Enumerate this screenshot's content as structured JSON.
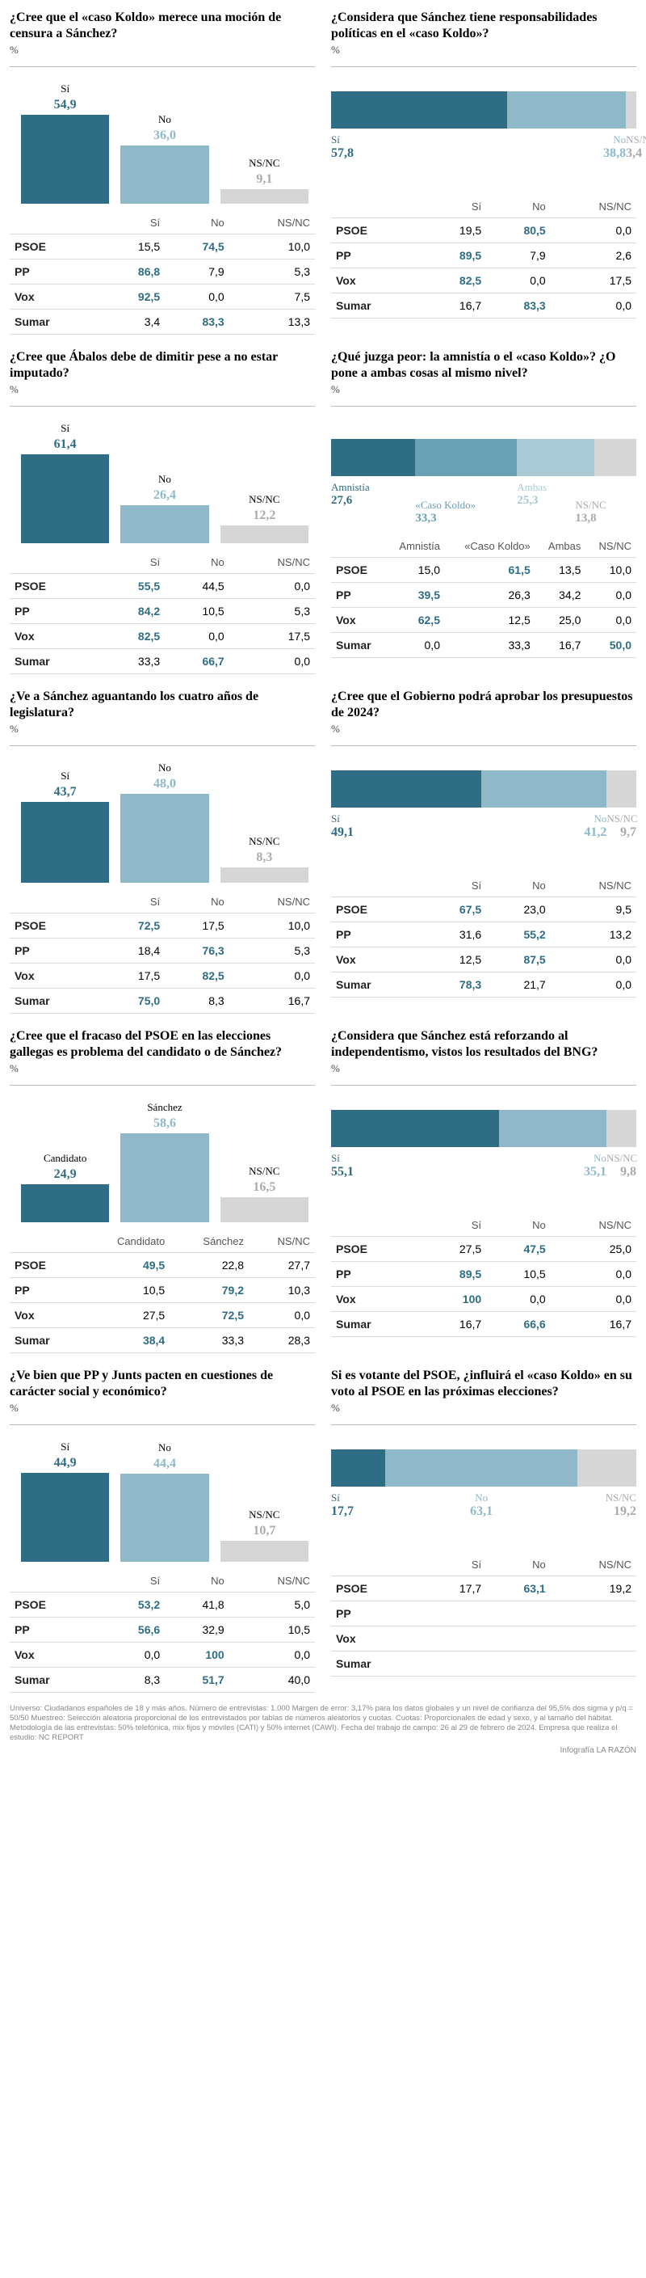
{
  "colors": {
    "dark": "#2f6d84",
    "mid": "#8fb9c8",
    "light": "#d6d6d6",
    "hl": "#2f6d84"
  },
  "unit": "%",
  "parties": [
    "PSOE",
    "PP",
    "Vox",
    "Sumar"
  ],
  "q1": {
    "title": "¿Cree que el «caso Koldo» merece una moción de censura a Sánchez?",
    "bars": [
      {
        "label": "Sí",
        "value": "54,9",
        "h": 54.9,
        "color": "#2f6d84",
        "vcolor": "#2f6d84"
      },
      {
        "label": "No",
        "value": "36,0",
        "h": 36.0,
        "color": "#8fb9c8",
        "vcolor": "#8fb9c8"
      },
      {
        "label": "NS/NC",
        "value": "9,1",
        "h": 9.1,
        "color": "#d6d6d6",
        "vcolor": "#aaaaaa"
      }
    ],
    "cols": [
      "",
      "Sí",
      "No",
      "NS/NC"
    ],
    "rows": [
      [
        "PSOE",
        "15,5",
        "74,5",
        "10,0"
      ],
      [
        "PP",
        "86,8",
        "7,9",
        "5,3"
      ],
      [
        "Vox",
        "92,5",
        "0,0",
        "7,5"
      ],
      [
        "Sumar",
        "3,4",
        "83,3",
        "13,3"
      ]
    ],
    "hl": [
      [
        0,
        2
      ],
      [
        1,
        1
      ],
      [
        2,
        1
      ],
      [
        3,
        2
      ]
    ]
  },
  "q2": {
    "title": "¿Considera que Sánchez tiene responsabilidades políticas en el «caso Koldo»?",
    "segs": [
      {
        "w": 57.8,
        "color": "#2f6d84"
      },
      {
        "w": 38.8,
        "color": "#8fb9c8"
      },
      {
        "w": 3.4,
        "color": "#d6d6d6"
      }
    ],
    "labs": [
      {
        "label": "Sí",
        "value": "57,8",
        "color": "#2f6d84",
        "align": "left"
      },
      {
        "label": "No",
        "value": "38,8",
        "color": "#8fb9c8",
        "align": "right"
      },
      {
        "label": "NS/NC",
        "value": "3,4",
        "color": "#aaaaaa",
        "align": "right"
      }
    ],
    "cols": [
      "",
      "Sí",
      "No",
      "NS/NC"
    ],
    "rows": [
      [
        "PSOE",
        "19,5",
        "80,5",
        "0,0"
      ],
      [
        "PP",
        "89,5",
        "7,9",
        "2,6"
      ],
      [
        "Vox",
        "82,5",
        "0,0",
        "17,5"
      ],
      [
        "Sumar",
        "16,7",
        "83,3",
        "0,0"
      ]
    ],
    "hl": [
      [
        0,
        2
      ],
      [
        1,
        1
      ],
      [
        2,
        1
      ],
      [
        3,
        2
      ]
    ]
  },
  "q3": {
    "title": "¿Cree que Ábalos debe de dimitir pese a no estar imputado?",
    "bars": [
      {
        "label": "Sí",
        "value": "61,4",
        "h": 61.4,
        "color": "#2f6d84",
        "vcolor": "#2f6d84"
      },
      {
        "label": "No",
        "value": "26,4",
        "h": 26.4,
        "color": "#8fb9c8",
        "vcolor": "#8fb9c8"
      },
      {
        "label": "NS/NC",
        "value": "12,2",
        "h": 12.2,
        "color": "#d6d6d6",
        "vcolor": "#aaaaaa"
      }
    ],
    "cols": [
      "",
      "Sí",
      "No",
      "NS/NC"
    ],
    "rows": [
      [
        "PSOE",
        "55,5",
        "44,5",
        "0,0"
      ],
      [
        "PP",
        "84,2",
        "10,5",
        "5,3"
      ],
      [
        "Vox",
        "82,5",
        "0,0",
        "17,5"
      ],
      [
        "Sumar",
        "33,3",
        "66,7",
        "0,0"
      ]
    ],
    "hl": [
      [
        0,
        1
      ],
      [
        1,
        1
      ],
      [
        2,
        1
      ],
      [
        3,
        2
      ]
    ]
  },
  "q4": {
    "title": "¿Qué juzga peor: la amnistía o el «caso Koldo»? ¿O pone a ambas cosas al mismo nivel?",
    "segs": [
      {
        "w": 27.6,
        "color": "#2f6d84"
      },
      {
        "w": 33.3,
        "color": "#6aa0b3"
      },
      {
        "w": 25.3,
        "color": "#a9c9d4"
      },
      {
        "w": 13.8,
        "color": "#d6d6d6"
      }
    ],
    "labs": [
      {
        "label": "Amnistía",
        "value": "27,6",
        "x": 0
      },
      {
        "label": "«Caso Koldo»",
        "value": "33,3",
        "x": 27.6
      },
      {
        "label": "Ambas",
        "value": "25,3",
        "x": 60.9
      },
      {
        "label": "NS/NC",
        "value": "13,8",
        "x": 86.2
      }
    ],
    "cols": [
      "",
      "Amnistía",
      "«Caso Koldo»",
      "Ambas",
      "NS/NC"
    ],
    "rows": [
      [
        "PSOE",
        "15,0",
        "61,5",
        "13,5",
        "10,0"
      ],
      [
        "PP",
        "39,5",
        "26,3",
        "34,2",
        "0,0"
      ],
      [
        "Vox",
        "62,5",
        "12,5",
        "25,0",
        "0,0"
      ],
      [
        "Sumar",
        "0,0",
        "33,3",
        "16,7",
        "50,0"
      ]
    ],
    "hl": [
      [
        0,
        2
      ],
      [
        1,
        1
      ],
      [
        2,
        1
      ],
      [
        3,
        4
      ]
    ]
  },
  "q5": {
    "title": "¿Ve a Sánchez aguantando los cuatro años de legislatura?",
    "bars": [
      {
        "label": "Sí",
        "value": "43,7",
        "h": 43.7,
        "color": "#2f6d84",
        "vcolor": "#2f6d84"
      },
      {
        "label": "No",
        "value": "48,0",
        "h": 48.0,
        "color": "#8fb9c8",
        "vcolor": "#8fb9c8"
      },
      {
        "label": "NS/NC",
        "value": "8,3",
        "h": 8.3,
        "color": "#d6d6d6",
        "vcolor": "#aaaaaa"
      }
    ],
    "cols": [
      "",
      "Sí",
      "No",
      "NS/NC"
    ],
    "rows": [
      [
        "PSOE",
        "72,5",
        "17,5",
        "10,0"
      ],
      [
        "PP",
        "18,4",
        "76,3",
        "5,3"
      ],
      [
        "Vox",
        "17,5",
        "82,5",
        "0,0"
      ],
      [
        "Sumar",
        "75,0",
        "8,3",
        "16,7"
      ]
    ],
    "hl": [
      [
        0,
        1
      ],
      [
        1,
        2
      ],
      [
        2,
        2
      ],
      [
        3,
        1
      ]
    ]
  },
  "q6": {
    "title": "¿Cree que el Gobierno podrá aprobar los presupuestos de 2024?",
    "segs": [
      {
        "w": 49.1,
        "color": "#2f6d84"
      },
      {
        "w": 41.2,
        "color": "#8fb9c8"
      },
      {
        "w": 9.7,
        "color": "#d6d6d6"
      }
    ],
    "labs": [
      {
        "label": "Sí",
        "value": "49,1",
        "color": "#2f6d84",
        "align": "left"
      },
      {
        "label": "No",
        "value": "41,2",
        "color": "#8fb9c8",
        "align": "right"
      },
      {
        "label": "NS/NC",
        "value": "9,7",
        "color": "#aaaaaa",
        "align": "right"
      }
    ],
    "cols": [
      "",
      "Sí",
      "No",
      "NS/NC"
    ],
    "rows": [
      [
        "PSOE",
        "67,5",
        "23,0",
        "9,5"
      ],
      [
        "PP",
        "31,6",
        "55,2",
        "13,2"
      ],
      [
        "Vox",
        "12,5",
        "87,5",
        "0,0"
      ],
      [
        "Sumar",
        "78,3",
        "21,7",
        "0,0"
      ]
    ],
    "hl": [
      [
        0,
        1
      ],
      [
        1,
        2
      ],
      [
        2,
        2
      ],
      [
        3,
        1
      ]
    ]
  },
  "q7": {
    "title": "¿Cree que el fracaso del PSOE en las elecciones gallegas es problema del candidato o de Sánchez?",
    "bars": [
      {
        "label": "Candidato",
        "value": "24,9",
        "h": 24.9,
        "color": "#2f6d84",
        "vcolor": "#2f6d84"
      },
      {
        "label": "Sánchez",
        "value": "58,6",
        "h": 58.6,
        "color": "#8fb9c8",
        "vcolor": "#8fb9c8"
      },
      {
        "label": "NS/NC",
        "value": "16,5",
        "h": 16.5,
        "color": "#d6d6d6",
        "vcolor": "#aaaaaa"
      }
    ],
    "cols": [
      "",
      "Candidato",
      "Sánchez",
      "NS/NC"
    ],
    "rows": [
      [
        "PSOE",
        "49,5",
        "22,8",
        "27,7"
      ],
      [
        "PP",
        "10,5",
        "79,2",
        "10,3"
      ],
      [
        "Vox",
        "27,5",
        "72,5",
        "0,0"
      ],
      [
        "Sumar",
        "38,4",
        "33,3",
        "28,3"
      ]
    ],
    "hl": [
      [
        0,
        1
      ],
      [
        1,
        2
      ],
      [
        2,
        2
      ],
      [
        3,
        1
      ]
    ]
  },
  "q8": {
    "title": "¿Considera que Sánchez está reforzando al independentismo, vistos los resultados del BNG?",
    "segs": [
      {
        "w": 55.1,
        "color": "#2f6d84"
      },
      {
        "w": 35.1,
        "color": "#8fb9c8"
      },
      {
        "w": 9.8,
        "color": "#d6d6d6"
      }
    ],
    "labs": [
      {
        "label": "Sí",
        "value": "55,1",
        "color": "#2f6d84",
        "align": "left"
      },
      {
        "label": "No",
        "value": "35,1",
        "color": "#8fb9c8",
        "align": "right"
      },
      {
        "label": "NS/NC",
        "value": "9,8",
        "color": "#aaaaaa",
        "align": "right"
      }
    ],
    "cols": [
      "",
      "Sí",
      "No",
      "NS/NC"
    ],
    "rows": [
      [
        "PSOE",
        "27,5",
        "47,5",
        "25,0"
      ],
      [
        "PP",
        "89,5",
        "10,5",
        "0,0"
      ],
      [
        "Vox",
        "100",
        "0,0",
        "0,0"
      ],
      [
        "Sumar",
        "16,7",
        "66,6",
        "16,7"
      ]
    ],
    "hl": [
      [
        0,
        2
      ],
      [
        1,
        1
      ],
      [
        2,
        1
      ],
      [
        3,
        2
      ]
    ]
  },
  "q9": {
    "title": "¿Ve bien que PP y Junts pacten en cuestiones de carácter social y económico?",
    "bars": [
      {
        "label": "Sí",
        "value": "44,9",
        "h": 44.9,
        "color": "#2f6d84",
        "vcolor": "#2f6d84"
      },
      {
        "label": "No",
        "value": "44,4",
        "h": 44.4,
        "color": "#8fb9c8",
        "vcolor": "#8fb9c8"
      },
      {
        "label": "NS/NC",
        "value": "10,7",
        "h": 10.7,
        "color": "#d6d6d6",
        "vcolor": "#aaaaaa"
      }
    ],
    "cols": [
      "",
      "Sí",
      "No",
      "NS/NC"
    ],
    "rows": [
      [
        "PSOE",
        "53,2",
        "41,8",
        "5,0"
      ],
      [
        "PP",
        "56,6",
        "32,9",
        "10,5"
      ],
      [
        "Vox",
        "0,0",
        "100",
        "0,0"
      ],
      [
        "Sumar",
        "8,3",
        "51,7",
        "40,0"
      ]
    ],
    "hl": [
      [
        0,
        1
      ],
      [
        1,
        1
      ],
      [
        2,
        2
      ],
      [
        3,
        2
      ]
    ]
  },
  "q10": {
    "title": "Si es votante del PSOE, ¿influirá el «caso Koldo» en su voto al PSOE en las próximas elecciones?",
    "segs": [
      {
        "w": 17.7,
        "color": "#2f6d84"
      },
      {
        "w": 63.1,
        "color": "#8fb9c8"
      },
      {
        "w": 19.2,
        "color": "#d6d6d6"
      }
    ],
    "labs": [
      {
        "label": "Sí",
        "value": "17,7",
        "color": "#2f6d84",
        "align": "left"
      },
      {
        "label": "No",
        "value": "63,1",
        "color": "#8fb9c8",
        "align": "center"
      },
      {
        "label": "NS/NC",
        "value": "19,2",
        "color": "#aaaaaa",
        "align": "right"
      }
    ],
    "cols": [
      "",
      "Sí",
      "No",
      "NS/NC"
    ],
    "rows": [
      [
        "PSOE",
        "17,7",
        "63,1",
        "19,2"
      ],
      [
        "PP",
        "",
        "",
        ""
      ],
      [
        "Vox",
        "",
        "",
        ""
      ],
      [
        "Sumar",
        "",
        "",
        ""
      ]
    ],
    "hl": [
      [
        0,
        2
      ]
    ],
    "dimrows": [
      1,
      2,
      3
    ]
  },
  "footer": "Universo: Ciudadanos españoles de 18 y más años. Número de entrevistas: 1.000 Margen de error: 3,17% para los datos globales y un nivel de confianza del 95,5% dos sigma y p/q = 50/50 Muestreo: Selección aleatoria proporcional de los entrevistados por tablas de números aleatorios y cuotas. Cuotas: Proporcionales de edad y sexo, y al tamaño del hábitat. Metodología de las entrevistas: 50% telefónica, mix fijos y móviles (CATI) y 50% internet (CAWI). Fecha del trabajo de campo: 26 al 29 de febrero de 2024. Empresa que realiza el estudio: NC REPORT",
  "credit": "Infografía LA RAZÓN"
}
